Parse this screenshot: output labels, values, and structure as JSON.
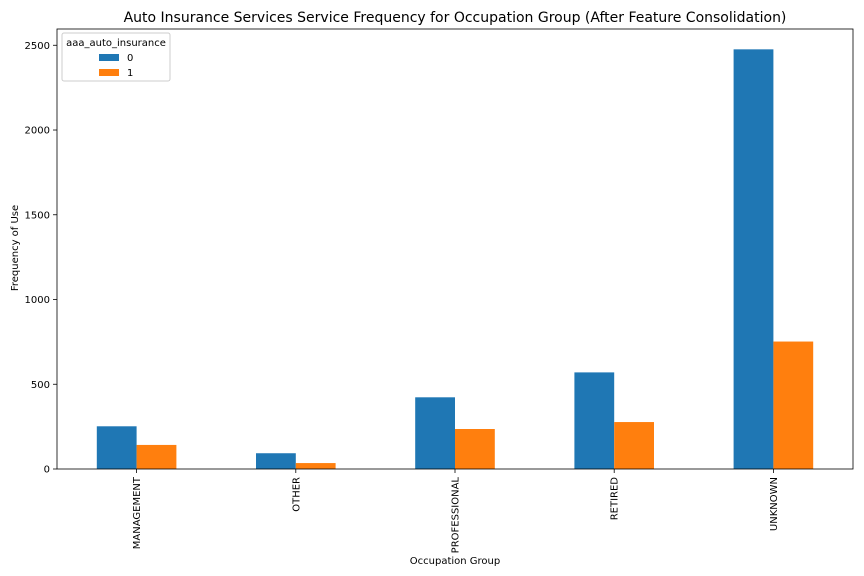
{
  "chart_data": {
    "type": "bar",
    "title": "Auto Insurance Services Service Frequency for Occupation Group (After Feature Consolidation)",
    "xlabel": "Occupation Group",
    "ylabel": "Frequency of Use",
    "categories": [
      "MANAGEMENT",
      "OTHER",
      "PROFESSIONAL",
      "RETIRED",
      "UNKNOWN"
    ],
    "series": [
      {
        "name": "0",
        "values": [
          252,
          93,
          423,
          570,
          2476
        ],
        "color": "#1f77b4"
      },
      {
        "name": "1",
        "values": [
          142,
          35,
          236,
          277,
          752
        ],
        "color": "#ff7f0e"
      }
    ],
    "ylim": [
      0,
      2596
    ],
    "yticks": [
      0,
      500,
      1000,
      1500,
      2000,
      2500
    ],
    "grid": false,
    "legend": {
      "title": "aaa_auto_insurance",
      "placement": "top-left"
    }
  }
}
